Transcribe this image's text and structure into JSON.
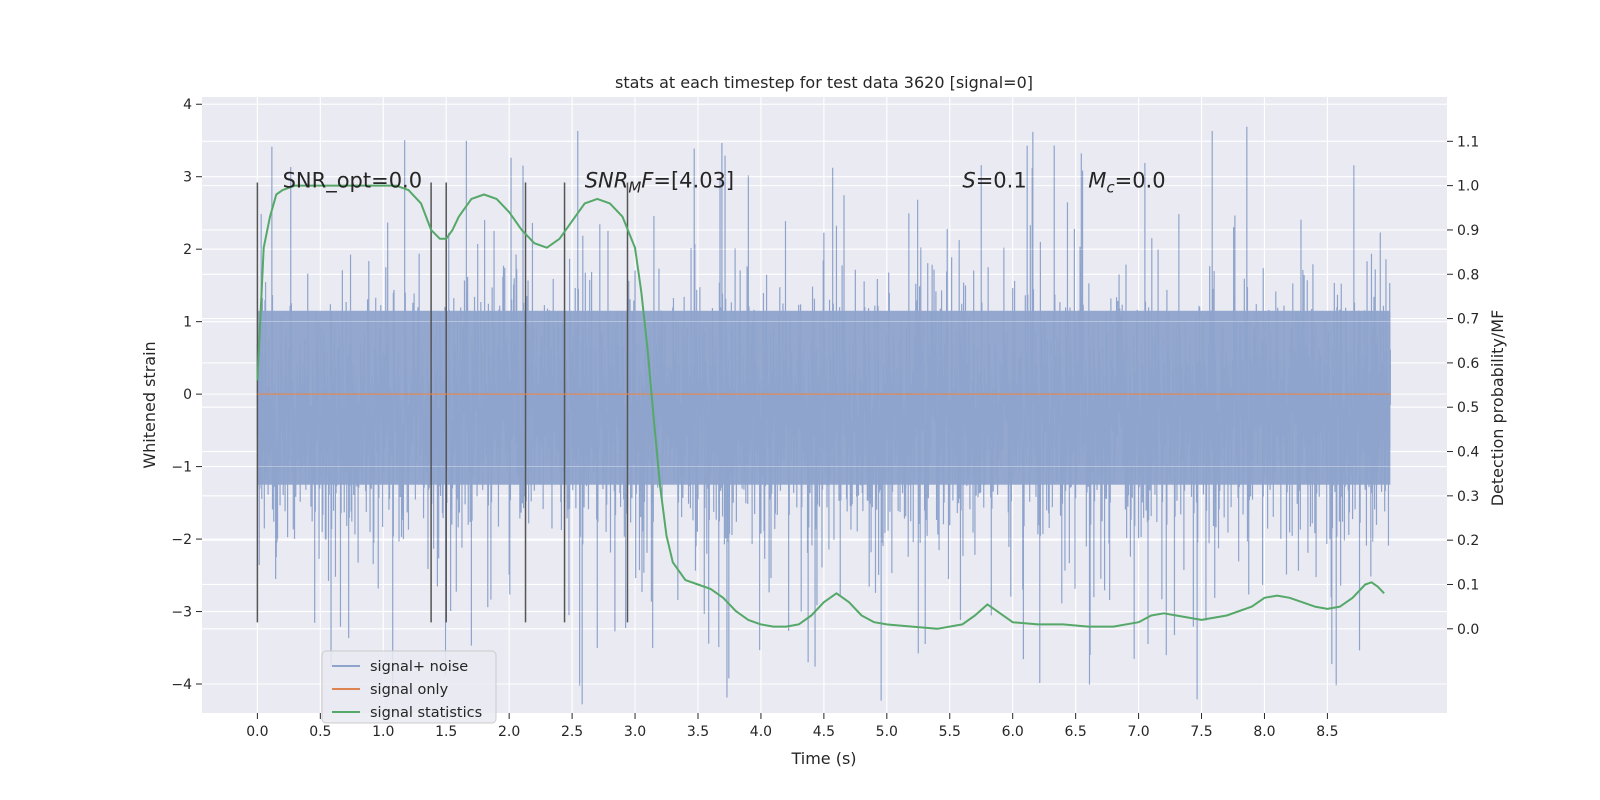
{
  "chart_data": {
    "type": "line",
    "title": "stats at each timestep for test data 3620 [signal=0]",
    "xlabel": "Time (s)",
    "ylabel": "Whitened strain",
    "y2label": "Detection probability/MF",
    "xlim": [
      -0.44,
      9.45
    ],
    "ylim": [
      -4.4,
      4.1
    ],
    "y2lim": [
      -0.19,
      1.2
    ],
    "x_ticks": [
      "0.0",
      "0.5",
      "1.0",
      "1.5",
      "2.0",
      "2.5",
      "3.0",
      "3.5",
      "4.0",
      "4.5",
      "5.0",
      "5.5",
      "6.0",
      "6.5",
      "7.0",
      "7.5",
      "8.0",
      "8.5"
    ],
    "y_ticks": [
      "4",
      "3",
      "2",
      "1",
      "0",
      "−1",
      "−2",
      "−3",
      "−4"
    ],
    "y2_ticks": [
      "1.1",
      "1.0",
      "0.9",
      "0.8",
      "0.7",
      "0.6",
      "0.5",
      "0.4",
      "0.3",
      "0.2",
      "0.1",
      "0.0"
    ],
    "grid": true,
    "legend_position": "lower-left",
    "legend": [
      "signal+ noise",
      "signal only",
      "signal statistics"
    ],
    "annotations": [
      {
        "text": "SNR_opt=0.0",
        "x": 0.2
      },
      {
        "text": "SNR_MF=[4.03]",
        "x": 2.6
      },
      {
        "text": "S=0.1",
        "x": 5.6
      },
      {
        "text": "M_c=0.0",
        "x": 6.6
      }
    ],
    "vertical_markers": [
      0.0,
      1.38,
      1.5,
      2.13,
      2.44,
      2.94
    ],
    "series": [
      {
        "name": "signal+ noise",
        "color": "#8fa4cc",
        "t_range": [
          0.0,
          9.0
        ],
        "typical_range": [
          -1.4,
          1.4
        ],
        "notes": "dense whitened noise time series"
      },
      {
        "name": "signal only",
        "color": "#dd8452",
        "t": [
          0.0,
          9.0
        ],
        "values": [
          0.0,
          0.0
        ]
      },
      {
        "name": "signal statistics",
        "color": "#55a868",
        "axis": "right",
        "t": [
          0.0,
          0.05,
          0.1,
          0.15,
          0.2,
          0.3,
          0.5,
          0.8,
          1.0,
          1.1,
          1.2,
          1.3,
          1.38,
          1.45,
          1.5,
          1.55,
          1.6,
          1.7,
          1.8,
          1.9,
          2.0,
          2.1,
          2.2,
          2.3,
          2.4,
          2.5,
          2.6,
          2.7,
          2.8,
          2.9,
          3.0,
          3.05,
          3.1,
          3.15,
          3.2,
          3.25,
          3.3,
          3.4,
          3.5,
          3.6,
          3.7,
          3.8,
          3.9,
          4.0,
          4.1,
          4.2,
          4.3,
          4.4,
          4.5,
          4.6,
          4.7,
          4.8,
          4.9,
          5.0,
          5.2,
          5.4,
          5.6,
          5.7,
          5.8,
          5.9,
          6.0,
          6.2,
          6.4,
          6.6,
          6.8,
          7.0,
          7.1,
          7.2,
          7.3,
          7.5,
          7.7,
          7.9,
          8.0,
          8.1,
          8.2,
          8.3,
          8.4,
          8.5,
          8.6,
          8.7,
          8.8,
          8.85,
          8.9,
          8.95
        ],
        "values": [
          0.56,
          0.86,
          0.93,
          0.98,
          0.99,
          1.0,
          1.0,
          1.0,
          1.0,
          1.0,
          0.99,
          0.96,
          0.9,
          0.88,
          0.88,
          0.9,
          0.93,
          0.97,
          0.98,
          0.97,
          0.94,
          0.9,
          0.87,
          0.86,
          0.88,
          0.92,
          0.96,
          0.97,
          0.96,
          0.93,
          0.86,
          0.76,
          0.63,
          0.47,
          0.32,
          0.21,
          0.15,
          0.11,
          0.1,
          0.09,
          0.07,
          0.04,
          0.02,
          0.01,
          0.005,
          0.005,
          0.01,
          0.03,
          0.06,
          0.08,
          0.06,
          0.03,
          0.015,
          0.01,
          0.005,
          0.0,
          0.01,
          0.03,
          0.055,
          0.035,
          0.015,
          0.01,
          0.01,
          0.005,
          0.005,
          0.015,
          0.03,
          0.035,
          0.03,
          0.02,
          0.03,
          0.05,
          0.07,
          0.075,
          0.07,
          0.06,
          0.05,
          0.045,
          0.05,
          0.07,
          0.1,
          0.105,
          0.095,
          0.08
        ]
      }
    ]
  }
}
